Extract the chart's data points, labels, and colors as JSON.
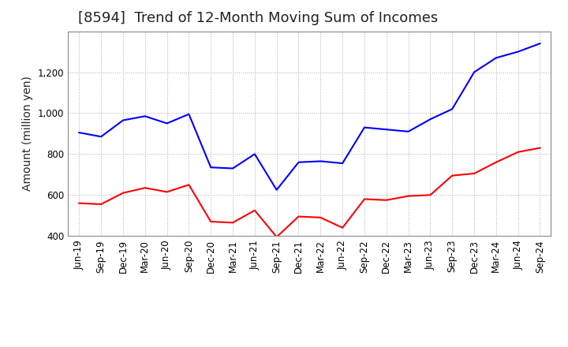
{
  "title": "[8594]  Trend of 12-Month Moving Sum of Incomes",
  "ylabel": "Amount (million yen)",
  "ylim": [
    400,
    1400
  ],
  "yticks": [
    400,
    600,
    800,
    1000,
    1200
  ],
  "x_labels": [
    "Jun-19",
    "Sep-19",
    "Dec-19",
    "Mar-20",
    "Jun-20",
    "Sep-20",
    "Dec-20",
    "Mar-21",
    "Jun-21",
    "Sep-21",
    "Dec-21",
    "Mar-22",
    "Jun-22",
    "Sep-22",
    "Dec-22",
    "Mar-23",
    "Jun-23",
    "Sep-23",
    "Dec-23",
    "Mar-24",
    "Jun-24",
    "Sep-24"
  ],
  "ordinary_income": [
    905,
    885,
    965,
    985,
    950,
    995,
    735,
    730,
    800,
    625,
    760,
    765,
    755,
    930,
    920,
    910,
    970,
    1020,
    1200,
    1270,
    1300,
    1340
  ],
  "net_income": [
    560,
    555,
    610,
    635,
    615,
    650,
    470,
    465,
    525,
    395,
    495,
    490,
    440,
    580,
    575,
    595,
    600,
    695,
    705,
    760,
    810,
    830
  ],
  "ordinary_color": "#0000ff",
  "net_color": "#ff0000",
  "bg_color": "#ffffff",
  "plot_bg_color": "#ffffff",
  "grid_color": "#aaaaaa",
  "line_width": 1.5,
  "title_fontsize": 13,
  "title_color": "#222222",
  "legend_fontsize": 10,
  "tick_fontsize": 8.5,
  "ylabel_fontsize": 10
}
